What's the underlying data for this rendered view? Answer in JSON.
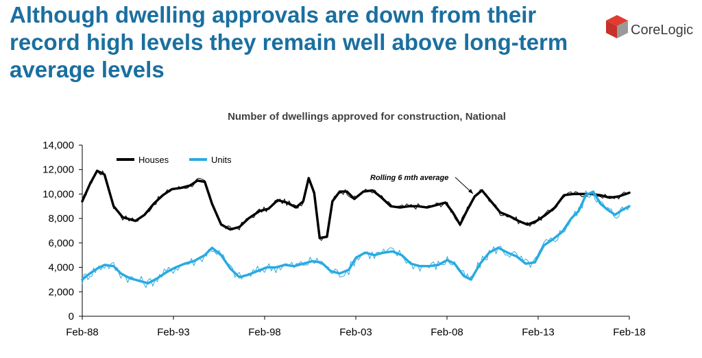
{
  "page": {
    "headline": "Although dwelling approvals are down from their record high levels they remain well above long-term average levels",
    "logo_text": "CoreLogic",
    "logo_colors": [
      "#e03c31",
      "#9a9a9a"
    ]
  },
  "chart_data": {
    "type": "line",
    "title": "Number of dwellings approved for construction, National",
    "xlabel": "",
    "ylabel": "",
    "x_tick_labels": [
      "Feb-88",
      "Feb-93",
      "Feb-98",
      "Feb-03",
      "Feb-08",
      "Feb-13",
      "Feb-18"
    ],
    "x_tick_years": [
      1988.083,
      1993.083,
      1998.083,
      2003.083,
      2008.083,
      2013.083,
      2018.083
    ],
    "xlim": [
      1988.083,
      2018.083
    ],
    "ylim": [
      0,
      14000
    ],
    "y_ticks": [
      0,
      2000,
      4000,
      6000,
      8000,
      10000,
      12000,
      14000
    ],
    "y_tick_labels": [
      "0",
      "2,000",
      "4,000",
      "6,000",
      "8,000",
      "10,000",
      "12,000",
      "14,000"
    ],
    "legend": [
      "Houses",
      "Units"
    ],
    "legend_position": "top-left",
    "annotation": "Rolling 6 mth average",
    "grid": false,
    "colors": {
      "houses": "#000000",
      "units": "#29aae1"
    },
    "series": [
      {
        "name": "Houses",
        "x": [
          1988.083,
          1988.5,
          1988.9,
          1989.3,
          1989.8,
          1990.3,
          1991.0,
          1991.5,
          1992.0,
          1992.5,
          1993.0,
          1993.5,
          1994.0,
          1994.4,
          1994.8,
          1995.2,
          1995.7,
          1996.2,
          1996.7,
          1997.2,
          1997.8,
          1998.3,
          1998.8,
          1999.3,
          1999.8,
          2000.2,
          2000.5,
          2000.8,
          2001.1,
          2001.5,
          2001.8,
          2002.2,
          2002.6,
          2003.0,
          2003.5,
          2004.0,
          2004.5,
          2005.0,
          2005.5,
          2006.0,
          2006.5,
          2007.0,
          2007.5,
          2008.0,
          2008.4,
          2008.8,
          2009.2,
          2009.6,
          2010.0,
          2010.5,
          2011.0,
          2011.5,
          2012.0,
          2012.5,
          2013.0,
          2013.5,
          2014.0,
          2014.5,
          2015.0,
          2015.5,
          2016.0,
          2016.5,
          2017.0,
          2017.5,
          2018.083
        ],
        "values": [
          9400,
          10800,
          11900,
          11600,
          9000,
          8100,
          7800,
          8300,
          9200,
          9900,
          10400,
          10500,
          10700,
          11100,
          11000,
          9200,
          7500,
          7100,
          7300,
          8000,
          8600,
          8800,
          9500,
          9300,
          8900,
          9400,
          11300,
          10100,
          6400,
          6500,
          9400,
          10200,
          10200,
          9600,
          10200,
          10300,
          9700,
          9000,
          8900,
          9000,
          9000,
          8900,
          9100,
          9300,
          8500,
          7500,
          8700,
          9800,
          10300,
          9400,
          8500,
          8200,
          7800,
          7500,
          7800,
          8300,
          8900,
          9900,
          10000,
          10000,
          10000,
          9900,
          9700,
          9800,
          10100
        ]
      },
      {
        "name": "Units",
        "x": [
          1988.083,
          1988.5,
          1988.9,
          1989.3,
          1989.8,
          1990.2,
          1990.7,
          1991.2,
          1991.7,
          1992.2,
          1992.7,
          1993.2,
          1993.7,
          1994.2,
          1994.8,
          1995.2,
          1995.7,
          1996.2,
          1996.7,
          1997.2,
          1997.7,
          1998.2,
          1998.7,
          1999.2,
          1999.7,
          2000.2,
          2000.7,
          2001.2,
          2001.7,
          2002.2,
          2002.7,
          2003.1,
          2003.6,
          2004.1,
          2004.6,
          2005.1,
          2005.6,
          2006.1,
          2006.6,
          2007.1,
          2007.6,
          2008.1,
          2008.5,
          2009.0,
          2009.4,
          2009.9,
          2010.4,
          2010.9,
          2011.4,
          2011.9,
          2012.4,
          2012.9,
          2013.4,
          2013.9,
          2014.4,
          2014.9,
          2015.3,
          2015.7,
          2016.1,
          2016.5,
          2016.9,
          2017.3,
          2017.7,
          2018.083
        ],
        "values": [
          3000,
          3500,
          3900,
          4200,
          4100,
          3500,
          3100,
          2900,
          2700,
          3100,
          3600,
          4000,
          4300,
          4500,
          5000,
          5600,
          5000,
          3900,
          3200,
          3400,
          3700,
          4000,
          4000,
          4200,
          4100,
          4300,
          4500,
          4400,
          3700,
          3500,
          3800,
          4800,
          5200,
          5000,
          5200,
          5300,
          5000,
          4300,
          4100,
          4100,
          4200,
          4600,
          4300,
          3300,
          3000,
          4300,
          5200,
          5600,
          5200,
          4900,
          4300,
          4400,
          5800,
          6300,
          6900,
          8000,
          8600,
          9900,
          10200,
          9200,
          8700,
          8300,
          8700,
          9000
        ]
      }
    ]
  }
}
